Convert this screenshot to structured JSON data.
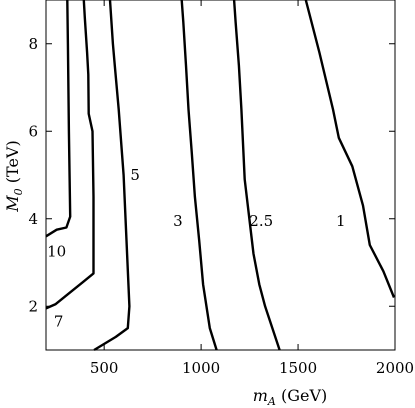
{
  "chart_data": {
    "type": "contour",
    "xlabel": {
      "main": "m",
      "sub": "A",
      "rest": " (GeV)"
    },
    "ylabel": {
      "main": "M",
      "sub": "0",
      "rest": " (TeV)"
    },
    "xlim": [
      200,
      2000
    ],
    "ylim": [
      1,
      9
    ],
    "xticks": [
      500,
      1000,
      1500,
      2000
    ],
    "yticks": [
      2,
      4,
      6,
      8
    ],
    "grid": false,
    "contours": [
      {
        "label": "10",
        "points": [
          [
            200,
            3.6
          ],
          [
            255,
            3.75
          ],
          [
            305,
            3.8
          ],
          [
            325,
            4.05
          ],
          [
            318,
            6.0
          ],
          [
            313,
            8.0
          ],
          [
            310,
            9.0
          ]
        ]
      },
      {
        "label": "7",
        "points": [
          [
            200,
            1.95
          ],
          [
            250,
            2.05
          ],
          [
            320,
            2.3
          ],
          [
            390,
            2.55
          ],
          [
            445,
            2.75
          ],
          [
            445,
            4.5
          ],
          [
            440,
            6.0
          ],
          [
            420,
            6.4
          ],
          [
            418,
            7.3
          ],
          [
            412,
            7.8
          ],
          [
            400,
            8.6
          ],
          [
            395,
            9.0
          ]
        ]
      },
      {
        "label": "5",
        "points": [
          [
            448,
            1.0
          ],
          [
            560,
            1.3
          ],
          [
            622,
            1.5
          ],
          [
            630,
            2.0
          ],
          [
            615,
            3.5
          ],
          [
            600,
            5.0
          ],
          [
            575,
            6.5
          ],
          [
            555,
            7.5
          ],
          [
            545,
            8.0
          ],
          [
            530,
            9.0
          ]
        ]
      },
      {
        "label": "3",
        "points": [
          [
            1080,
            1.0
          ],
          [
            1045,
            1.5
          ],
          [
            1010,
            2.5
          ],
          [
            990,
            3.5
          ],
          [
            968,
            4.5
          ],
          [
            952,
            5.5
          ],
          [
            935,
            6.5
          ],
          [
            922,
            7.5
          ],
          [
            908,
            8.5
          ],
          [
            900,
            9.0
          ]
        ]
      },
      {
        "label": "2.5",
        "points": [
          [
            1405,
            1.0
          ],
          [
            1330,
            2.0
          ],
          [
            1300,
            2.5
          ],
          [
            1270,
            3.2
          ],
          [
            1225,
            4.9
          ],
          [
            1208,
            6.5
          ],
          [
            1195,
            7.5
          ],
          [
            1178,
            8.5
          ],
          [
            1170,
            9.0
          ]
        ]
      },
      {
        "label": "1",
        "points": [
          [
            1995,
            2.2
          ],
          [
            1940,
            2.8
          ],
          [
            1870,
            3.4
          ],
          [
            1835,
            4.3
          ],
          [
            1780,
            5.2
          ],
          [
            1710,
            5.85
          ],
          [
            1680,
            6.5
          ],
          [
            1610,
            7.8
          ],
          [
            1540,
            9.0
          ]
        ]
      }
    ],
    "contour_labels": [
      {
        "text": "10",
        "x": 255,
        "y": 3.25
      },
      {
        "text": "7",
        "x": 265,
        "y": 1.65
      },
      {
        "text": "5",
        "x": 660,
        "y": 5.0
      },
      {
        "text": "3",
        "x": 880,
        "y": 3.95
      },
      {
        "text": "2.5",
        "x": 1310,
        "y": 3.95
      },
      {
        "text": "1",
        "x": 1720,
        "y": 3.95
      }
    ]
  }
}
